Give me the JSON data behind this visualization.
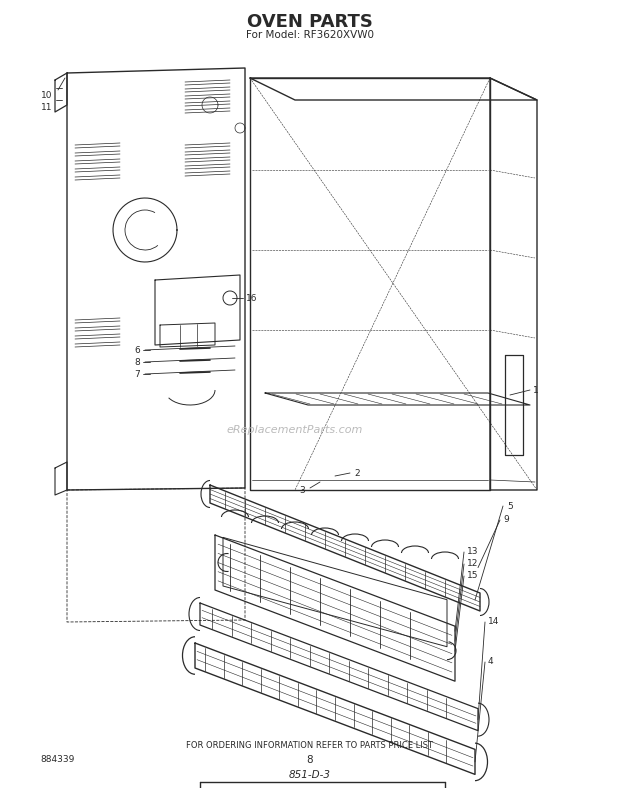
{
  "title": "OVEN PARTS",
  "subtitle": "For Model: RF3620XVW0",
  "footer_text": "FOR ORDERING INFORMATION REFER TO PARTS PRICE LIST",
  "page_number": "8",
  "diagram_id": "851-D-3",
  "catalog_number": "884339",
  "bg_color": "#ffffff",
  "line_color": "#2a2a2a",
  "text_color": "#2a2a2a",
  "watermark": "eReplacementParts.com"
}
